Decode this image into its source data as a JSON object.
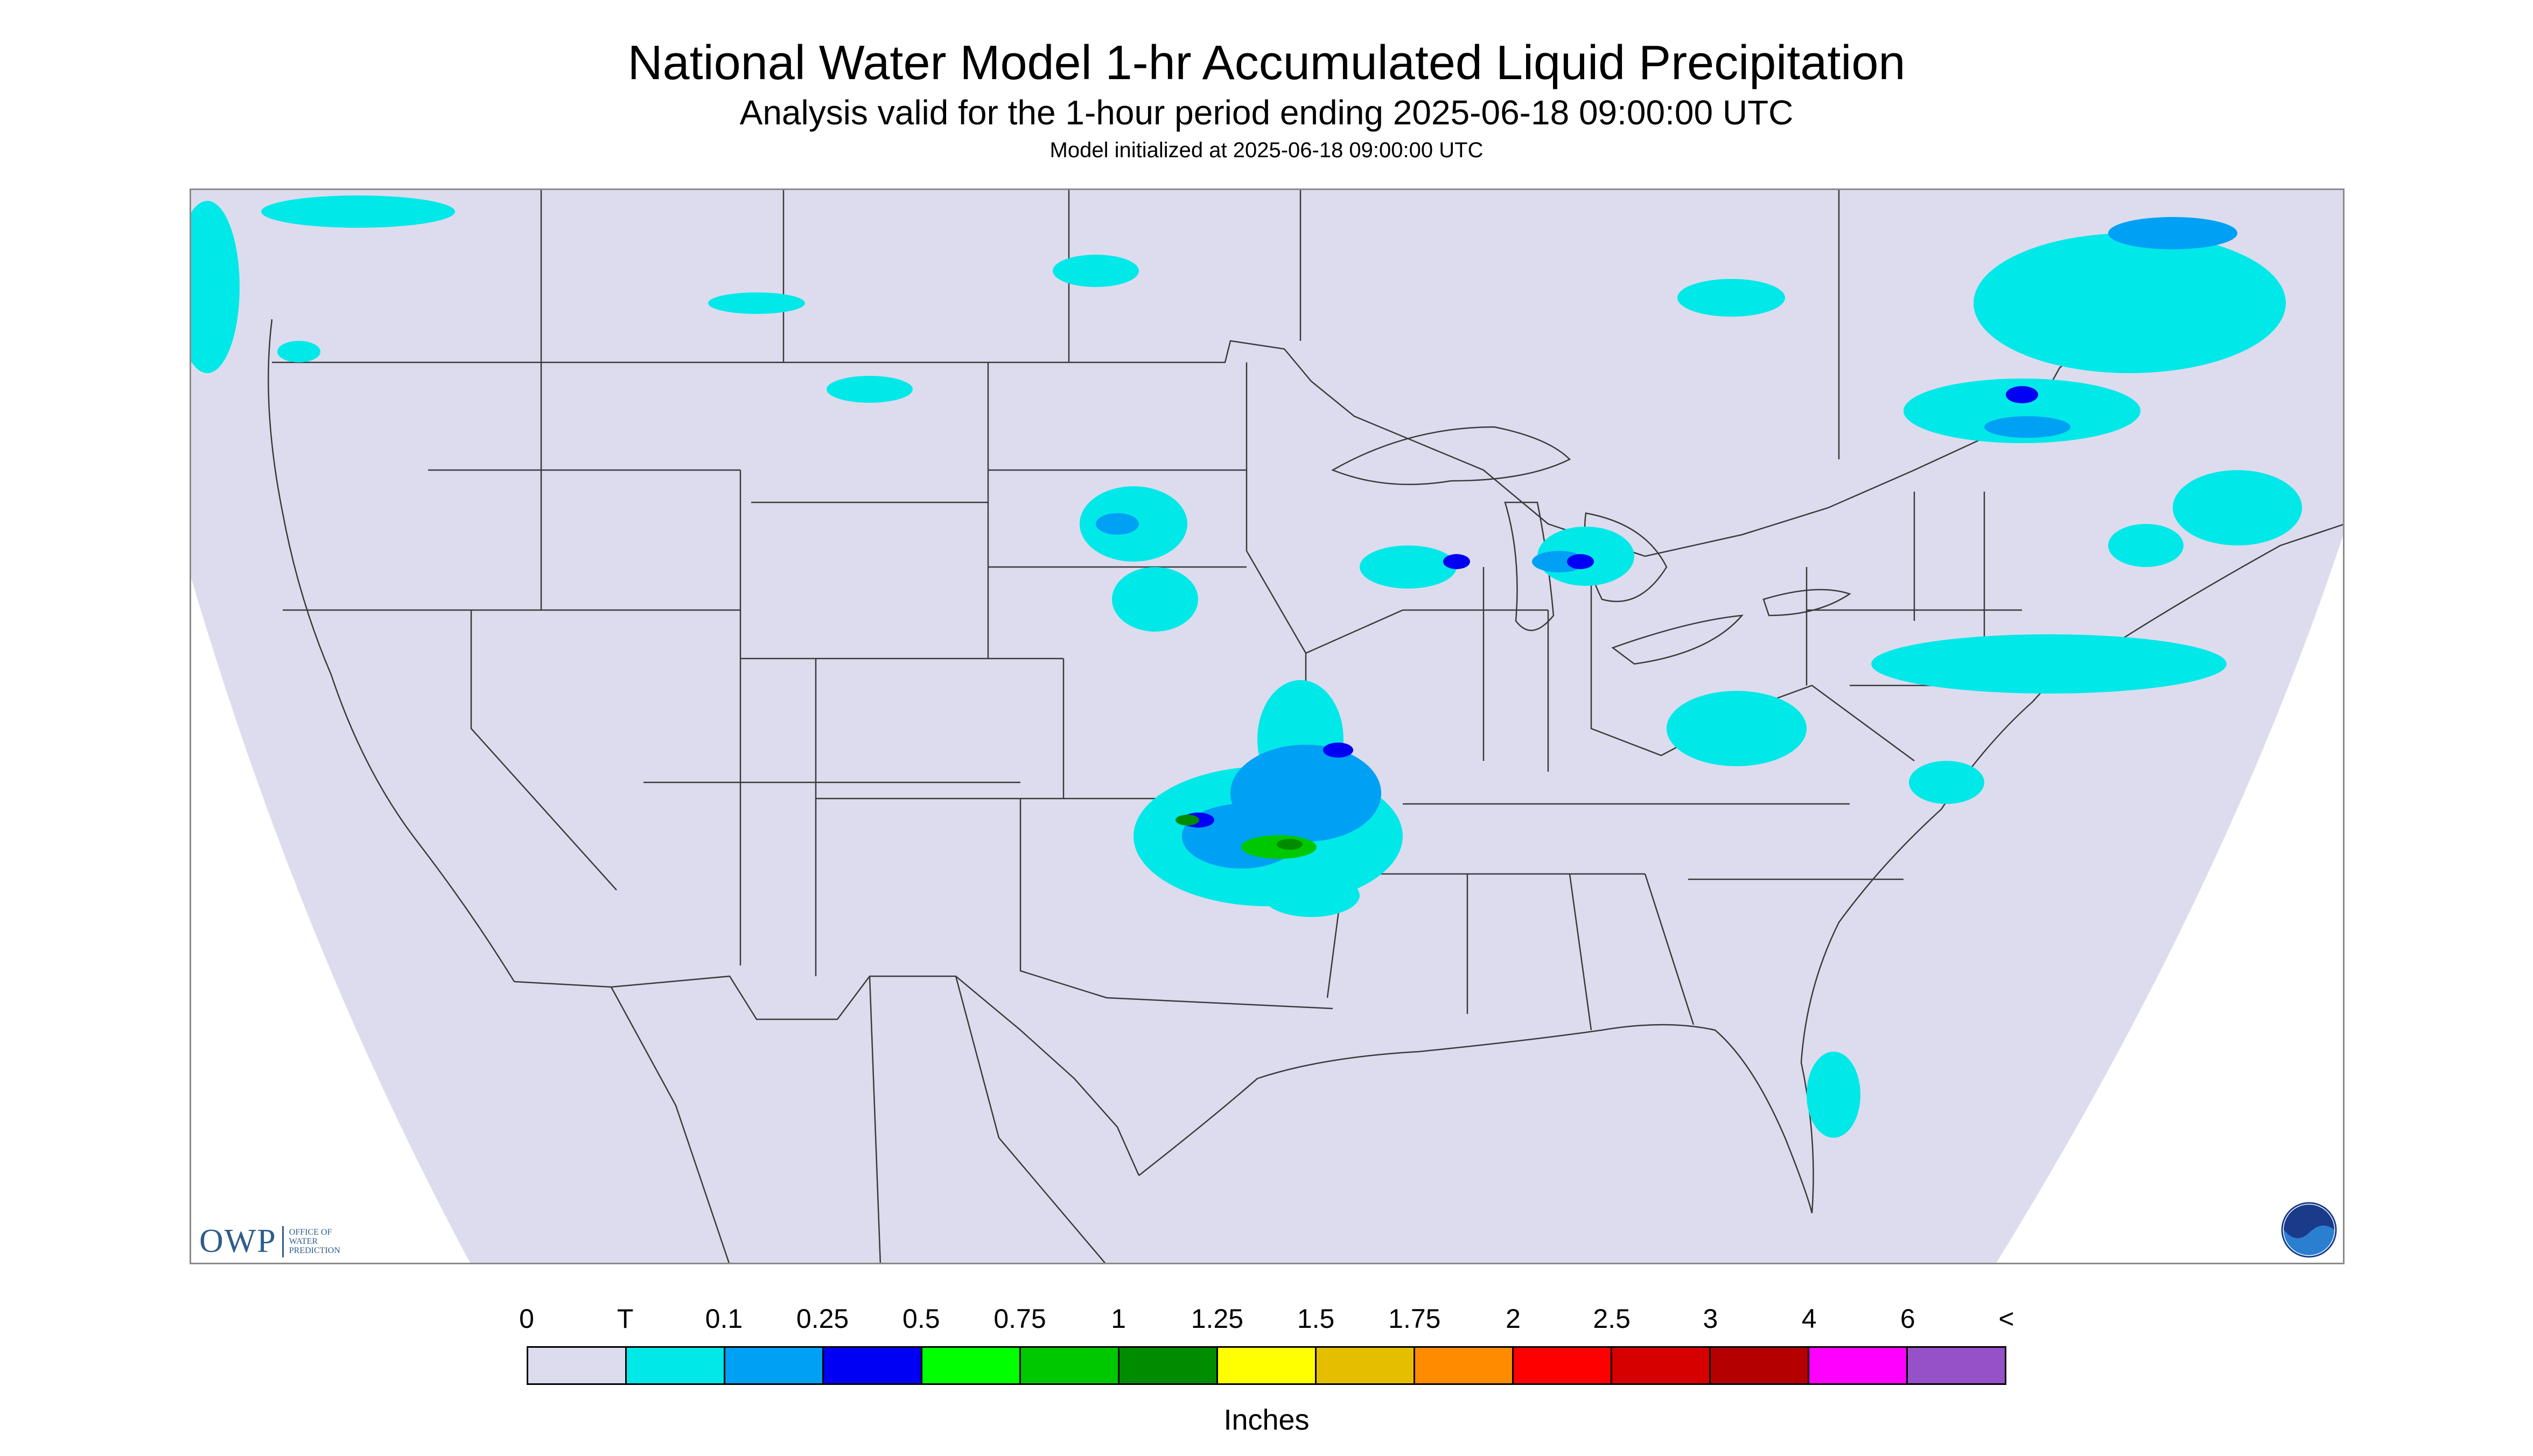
{
  "header": {
    "title": "National Water Model 1-hr Accumulated Liquid Precipitation",
    "subtitle": "Analysis valid for the 1-hour period ending 2025-06-18 09:00:00 UTC",
    "init": "Model initialized at 2025-06-18 09:00:00 UTC"
  },
  "logos": {
    "owp_abbrev": "OWP",
    "owp_full": [
      "OFFICE OF",
      "WATER",
      "PREDICTION"
    ],
    "noaa": "NOAA"
  },
  "legend": {
    "labels": [
      "0",
      "T",
      "0.1",
      "0.25",
      "0.5",
      "0.75",
      "1",
      "1.25",
      "1.5",
      "1.75",
      "2",
      "2.5",
      "3",
      "4",
      "6",
      "<"
    ],
    "colors": [
      "#dcdcee",
      "#00e8e8",
      "#00a0f5",
      "#0000f5",
      "#00ff00",
      "#00c800",
      "#008c00",
      "#ffff00",
      "#e6be00",
      "#ff8c00",
      "#ff0000",
      "#d70000",
      "#b40000",
      "#ff00ff",
      "#9650c8"
    ],
    "units": "Inches"
  },
  "map_colors": {
    "domain_fill": "#dcdcee",
    "outside_fill": "#ffffff",
    "border_line": "#3a3a3a",
    "trace": "#00e8e8",
    "light": "#00a0f5",
    "moderate": "#0000f5",
    "heavy": "#00c800",
    "heavier": "#008c00"
  }
}
